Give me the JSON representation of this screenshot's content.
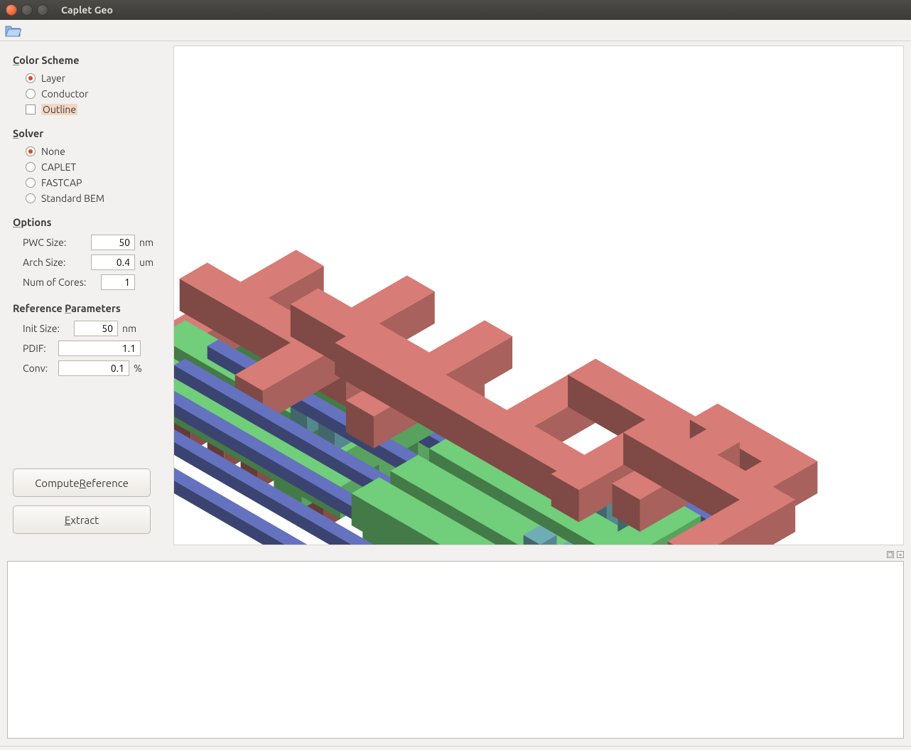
{
  "window": {
    "title": "Caplet Geo"
  },
  "sections": {
    "color_scheme": {
      "heading": "Color Scheme",
      "items": {
        "layer": {
          "label": "Layer",
          "selected": true
        },
        "conductor": {
          "label": "Conductor",
          "selected": false
        },
        "outline": {
          "label": "Outline",
          "checked": false
        }
      }
    },
    "solver": {
      "heading": "Solver",
      "items": {
        "none": {
          "label": "None",
          "selected": true
        },
        "caplet": {
          "label": "CAPLET",
          "selected": false
        },
        "fastcap": {
          "label": "FASTCAP",
          "selected": false
        },
        "stdbem": {
          "label": "Standard BEM",
          "selected": false
        }
      }
    },
    "options": {
      "heading": "Options",
      "pwc": {
        "label": "PWC Size:",
        "value": "50",
        "unit": "nm"
      },
      "arch": {
        "label": "Arch Size:",
        "value": "0.4",
        "unit": "um"
      },
      "cores": {
        "label": "Num of Cores:",
        "value": "1",
        "unit": ""
      }
    },
    "refparams": {
      "heading": "Reference Parameters",
      "init": {
        "label": "Init Size:",
        "value": "50",
        "unit": "nm"
      },
      "pdif": {
        "label": "PDIF:",
        "value": "1.1",
        "unit": ""
      },
      "conv": {
        "label": "Conv:",
        "value": "0.1",
        "unit": "%"
      }
    }
  },
  "buttons": {
    "compute": "Compute Reference",
    "extract": "Extract"
  },
  "viewport": {
    "background": "#ffffff",
    "layers": {
      "top_metal": "#cd7670",
      "mid_metal": "#6cc474",
      "via": "#6aa5ad",
      "substrate": "#a25f59",
      "rail": "#5f6db6"
    }
  }
}
